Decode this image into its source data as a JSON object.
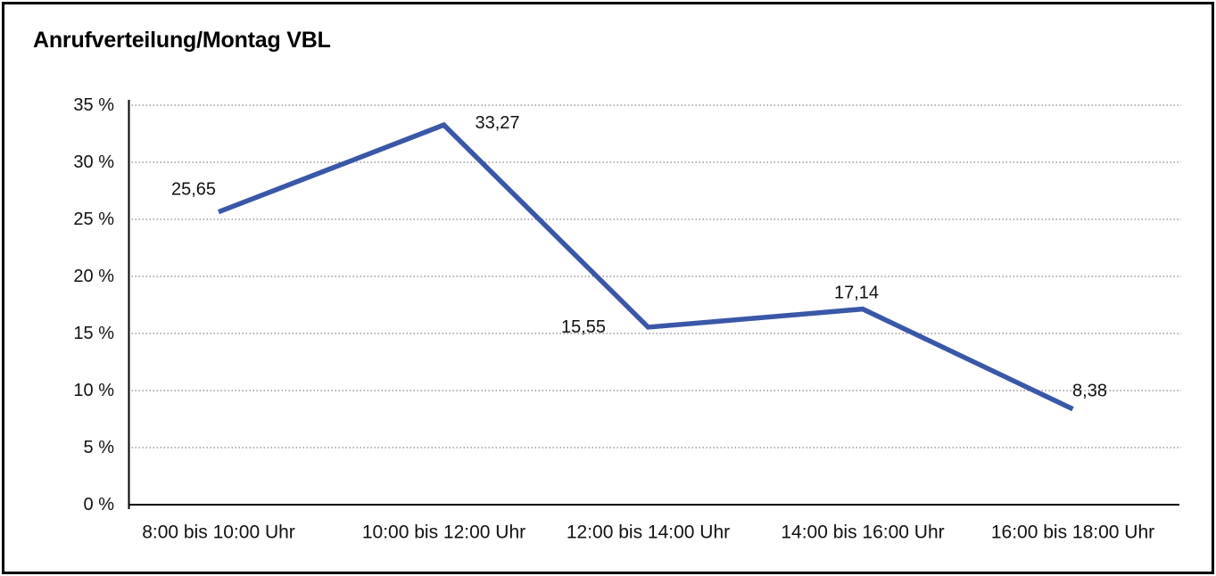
{
  "chart_data": {
    "type": "line",
    "title": "Anrufverteilung/Montag VBL",
    "categories": [
      "8:00 bis 10:00 Uhr",
      "10:00 bis 12:00 Uhr",
      "12:00 bis 14:00 Uhr",
      "14:00 bis 16:00 Uhr",
      "16:00 bis 18:00 Uhr"
    ],
    "values": [
      25.65,
      33.27,
      15.55,
      17.14,
      8.38
    ],
    "value_labels": [
      "25,65",
      "33,27",
      "15,55",
      "17,14",
      "8,38"
    ],
    "y_tick_labels": [
      "0 %",
      "5 %",
      "10 %",
      "15 %",
      "20 %",
      "25 %",
      "30 %",
      "35 %"
    ],
    "ylim": [
      0,
      35
    ],
    "y_tick_step": 5,
    "xlabel": "",
    "ylabel": "",
    "grid": "horizontal-dotted",
    "legend": "none",
    "line_color": "#3A57A8",
    "axis_color": "#000000",
    "gridline_color": "#666666",
    "text_color": "#111111",
    "frame_color": "#000000",
    "background_color": "#ffffff"
  }
}
